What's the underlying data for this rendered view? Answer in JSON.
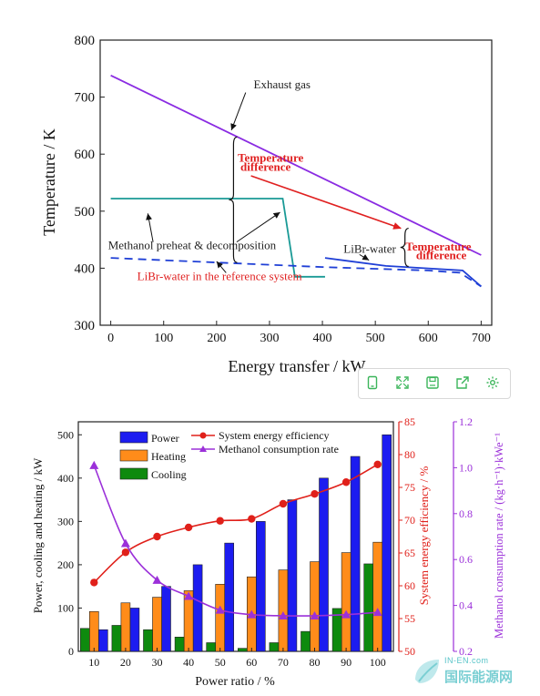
{
  "chart_data": [
    {
      "type": "line",
      "xlabel": "Energy transfer / kW",
      "ylabel": "Temperature / K",
      "xlim": [
        -20,
        720
      ],
      "ylim": [
        300,
        800
      ],
      "x_ticks": [
        0,
        100,
        200,
        300,
        400,
        500,
        600,
        700
      ],
      "y_ticks": [
        300,
        400,
        500,
        600,
        700,
        800
      ],
      "series": [
        {
          "key": "exhaust",
          "color": "#8a2be2",
          "style": "solid",
          "points": [
            [
              0,
              738
            ],
            [
              700,
              423
            ]
          ]
        },
        {
          "key": "methanol",
          "color": "#1a9a96",
          "style": "solid",
          "points": [
            [
              0,
              522
            ],
            [
              325,
              522
            ],
            [
              348,
              385
            ],
            [
              405,
              385
            ]
          ]
        },
        {
          "key": "reference",
          "color": "#1f3fd6",
          "style": "dashed",
          "points": [
            [
              0,
              418
            ],
            [
              200,
              410
            ],
            [
              400,
              402
            ],
            [
              600,
              396
            ],
            [
              660,
              392
            ],
            [
              700,
              368
            ]
          ]
        },
        {
          "key": "libr",
          "color": "#1f3fd6",
          "style": "solid",
          "points": [
            [
              405,
              418
            ],
            [
              520,
              404
            ],
            [
              665,
              396
            ],
            [
              700,
              368
            ]
          ]
        }
      ],
      "annotations": [
        {
          "text": "Exhaust gas",
          "x": 270,
          "y": 715,
          "color": "#222222"
        },
        {
          "text": "Temperature",
          "x": 240,
          "y": 587,
          "color": "#e02020",
          "bold": true
        },
        {
          "text": "difference",
          "x": 245,
          "y": 571,
          "color": "#e02020",
          "bold": true
        },
        {
          "text": "Methanol preheat & decomposition",
          "x": -5,
          "y": 433,
          "color": "#222222"
        },
        {
          "text": "LiBr-water",
          "x": 440,
          "y": 427,
          "color": "#222222"
        },
        {
          "text": "Temperature",
          "x": 557,
          "y": 431,
          "color": "#e02020",
          "bold": true
        },
        {
          "text": "difference",
          "x": 577,
          "y": 416,
          "color": "#e02020",
          "bold": true
        },
        {
          "text": "LiBr-water in the reference system",
          "x": 50,
          "y": 379,
          "color": "#e02020"
        }
      ]
    },
    {
      "type": "bar",
      "xlabel": "Power ratio / %",
      "ylabel": "Power, cooling and heating / kW",
      "y2label": "System energy efficiency / %",
      "y3label": "Methanol consumption rate / (kg·h⁻¹)·kWe⁻¹",
      "categories": [
        "10",
        "20",
        "30",
        "40",
        "50",
        "60",
        "70",
        "80",
        "90",
        "100"
      ],
      "ylim": [
        0,
        530
      ],
      "y_ticks": [
        0,
        100,
        200,
        300,
        400,
        500
      ],
      "y2lim": [
        50,
        85
      ],
      "y2_ticks": [
        50,
        55,
        60,
        65,
        70,
        75,
        80,
        85
      ],
      "y3lim": [
        0.2,
        1.2
      ],
      "y3_ticks": [
        0.2,
        0.4,
        0.6,
        0.8,
        1.0,
        1.2
      ],
      "series": [
        {
          "name": "Power",
          "color": "#1c1cf0",
          "values": [
            50,
            100,
            150,
            200,
            250,
            300,
            350,
            400,
            450,
            500
          ]
        },
        {
          "name": "Heating",
          "color": "#ff8c1a",
          "values": [
            92,
            112,
            125,
            140,
            155,
            172,
            188,
            207,
            228,
            252
          ]
        },
        {
          "name": "Cooling",
          "color": "#0e8a0e",
          "values": [
            53,
            60,
            50,
            33,
            20,
            7,
            20,
            46,
            99,
            202
          ]
        }
      ],
      "lines": [
        {
          "name": "System energy efficiency",
          "axis": "y2",
          "color": "#e0201a",
          "marker": "circle",
          "values": [
            60.5,
            65.1,
            67.5,
            68.9,
            69.9,
            70.2,
            72.5,
            74.0,
            75.8,
            78.5
          ]
        },
        {
          "name": "Methanol consumption rate",
          "axis": "y3",
          "color": "#9b30d9",
          "marker": "triangle",
          "values": [
            1.01,
            0.67,
            0.51,
            0.44,
            0.38,
            0.36,
            0.355,
            0.355,
            0.36,
            0.37
          ]
        }
      ],
      "legend_placement": "top-left"
    }
  ],
  "toolbar": {
    "icons": [
      "tablet-icon",
      "expand-icon",
      "save-icon",
      "share-icon",
      "settings-icon"
    ],
    "accent": "#3bb55a"
  },
  "watermark": {
    "top": "IN-EN.com",
    "main": "国际能源网"
  }
}
